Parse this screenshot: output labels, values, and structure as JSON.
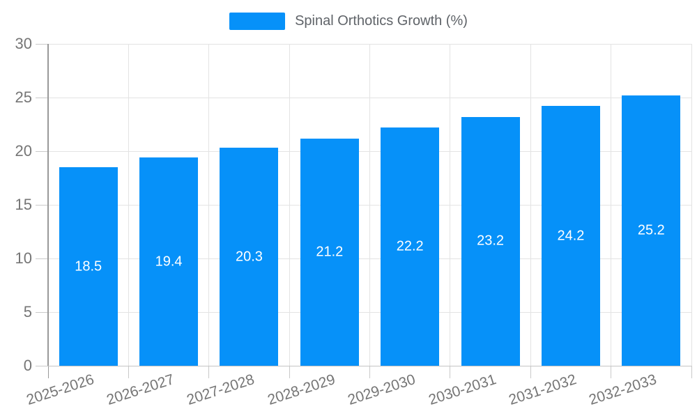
{
  "legend": {
    "label": "Spinal Orthotics Growth (%)"
  },
  "chart_data": {
    "type": "bar",
    "title": "Spinal Orthotics Growth (%)",
    "categories": [
      "2025-2026",
      "2026-2027",
      "2027-2028",
      "2028-2029",
      "2029-2030",
      "2030-2031",
      "2031-2032",
      "2032-2033"
    ],
    "series": [
      {
        "name": "Spinal Orthotics Growth (%)",
        "values": [
          18.5,
          19.4,
          20.3,
          21.2,
          22.2,
          23.2,
          24.2,
          25.2
        ]
      }
    ],
    "value_labels": [
      "18.5",
      "19.4",
      "20.3",
      "21.2",
      "22.2",
      "23.2",
      "24.2",
      "25.2"
    ],
    "xlabel": "",
    "ylabel": "",
    "ylim": [
      0,
      30
    ],
    "yticks": [
      0,
      5,
      10,
      15,
      20,
      25,
      30
    ],
    "grid": true,
    "legend_position": "top-center",
    "bar_label_position": "inside-middle",
    "x_label_rotation_deg": -18,
    "colors": {
      "bar": "#0691f9",
      "grid_line": "#e3e3e3",
      "axis_line": "#999999",
      "baseline": "#c4c4c4",
      "tick": "#c9c9c9",
      "axis_text": "#757575",
      "legend_text": "#5f6368",
      "value_text": "#ffffff",
      "background": "#ffffff"
    }
  }
}
